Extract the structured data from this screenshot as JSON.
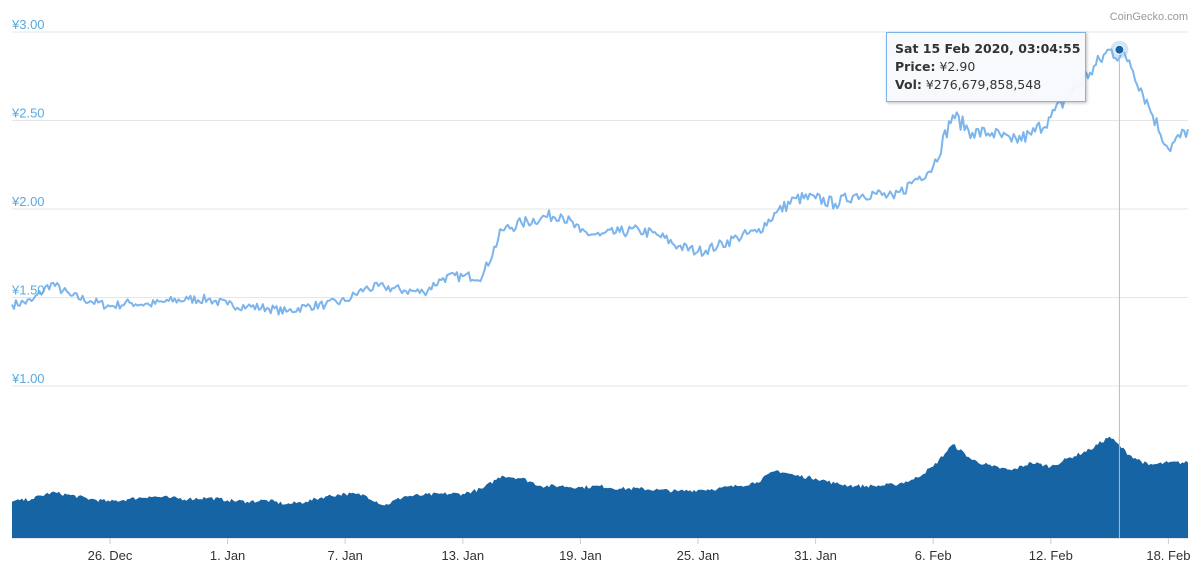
{
  "branding": {
    "credit": "CoinGecko.com"
  },
  "tooltip": {
    "date": "Sat 15 Feb 2020, 03:04:55",
    "price_label": "Price:",
    "price_value": "¥2.90",
    "vol_label": "Vol:",
    "vol_value": "¥276,679,858,548"
  },
  "colors": {
    "price_line": "#7cb5ec",
    "volume_fill": "#1764a4",
    "grid": "#e6e6e6",
    "ytick": "#5aa9e0"
  },
  "chart_data": {
    "type": "line",
    "x_axis": {
      "type": "date",
      "range": [
        "2019-12-21",
        "2020-02-19"
      ],
      "tick_labels": [
        "26. Dec",
        "1. Jan",
        "7. Jan",
        "13. Jan",
        "19. Jan",
        "25. Jan",
        "31. Jan",
        "6. Feb",
        "12. Feb",
        "18. Feb"
      ]
    },
    "y_axis": {
      "unit": "¥",
      "range": [
        1.0,
        3.0
      ],
      "tick_labels": [
        "¥1.00",
        "¥1.50",
        "¥2.00",
        "¥2.50",
        "¥3.00"
      ],
      "ticks": [
        1.0,
        1.5,
        2.0,
        2.5,
        3.0
      ],
      "grid": true
    },
    "series": [
      {
        "kind": "price",
        "x": [
          "2019-12-21",
          "2019-12-22",
          "2019-12-23",
          "2019-12-24",
          "2019-12-25",
          "2019-12-26",
          "2019-12-27",
          "2019-12-28",
          "2019-12-29",
          "2019-12-30",
          "2019-12-31",
          "2020-01-01",
          "2020-01-02",
          "2020-01-03",
          "2020-01-04",
          "2020-01-05",
          "2020-01-06",
          "2020-01-07",
          "2020-01-08",
          "2020-01-09",
          "2020-01-10",
          "2020-01-11",
          "2020-01-12",
          "2020-01-13",
          "2020-01-14",
          "2020-01-15",
          "2020-01-16",
          "2020-01-17",
          "2020-01-18",
          "2020-01-19",
          "2020-01-20",
          "2020-01-21",
          "2020-01-22",
          "2020-01-23",
          "2020-01-24",
          "2020-01-25",
          "2020-01-26",
          "2020-01-27",
          "2020-01-28",
          "2020-01-29",
          "2020-01-30",
          "2020-01-31",
          "2020-02-01",
          "2020-02-02",
          "2020-02-03",
          "2020-02-04",
          "2020-02-05",
          "2020-02-06",
          "2020-02-07",
          "2020-02-08",
          "2020-02-09",
          "2020-02-10",
          "2020-02-11",
          "2020-02-12",
          "2020-02-13",
          "2020-02-14",
          "2020-02-15",
          "2020-02-16",
          "2020-02-17",
          "2020-02-18",
          "2020-02-19"
        ],
        "y": [
          1.46,
          1.48,
          1.58,
          1.51,
          1.48,
          1.45,
          1.47,
          1.46,
          1.48,
          1.49,
          1.49,
          1.46,
          1.45,
          1.44,
          1.42,
          1.45,
          1.46,
          1.48,
          1.55,
          1.56,
          1.54,
          1.53,
          1.61,
          1.62,
          1.62,
          1.88,
          1.92,
          1.95,
          1.97,
          1.87,
          1.85,
          1.87,
          1.88,
          1.85,
          1.79,
          1.76,
          1.79,
          1.84,
          1.87,
          1.98,
          2.06,
          2.06,
          2.03,
          2.08,
          2.09,
          2.06,
          2.16,
          2.24,
          2.53,
          2.43,
          2.43,
          2.38,
          2.42,
          2.52,
          2.65,
          2.77,
          2.9,
          2.84,
          2.58,
          2.34,
          2.45
        ]
      },
      {
        "kind": "volume",
        "x": [
          "2019-12-21",
          "2019-12-22",
          "2019-12-23",
          "2019-12-24",
          "2019-12-25",
          "2019-12-26",
          "2019-12-27",
          "2019-12-28",
          "2019-12-29",
          "2019-12-30",
          "2019-12-31",
          "2020-01-01",
          "2020-01-02",
          "2020-01-03",
          "2020-01-04",
          "2020-01-05",
          "2020-01-06",
          "2020-01-07",
          "2020-01-08",
          "2020-01-09",
          "2020-01-10",
          "2020-01-11",
          "2020-01-12",
          "2020-01-13",
          "2020-01-14",
          "2020-01-15",
          "2020-01-16",
          "2020-01-17",
          "2020-01-18",
          "2020-01-19",
          "2020-01-20",
          "2020-01-21",
          "2020-01-22",
          "2020-01-23",
          "2020-01-24",
          "2020-01-25",
          "2020-01-26",
          "2020-01-27",
          "2020-01-28",
          "2020-01-29",
          "2020-01-30",
          "2020-01-31",
          "2020-02-01",
          "2020-02-02",
          "2020-02-03",
          "2020-02-04",
          "2020-02-05",
          "2020-02-06",
          "2020-02-07",
          "2020-02-08",
          "2020-02-09",
          "2020-02-10",
          "2020-02-11",
          "2020-02-12",
          "2020-02-13",
          "2020-02-14",
          "2020-02-15",
          "2020-02-16",
          "2020-02-17",
          "2020-02-18",
          "2020-02-19"
        ],
        "relative": [
          0.28,
          0.3,
          0.35,
          0.33,
          0.3,
          0.28,
          0.3,
          0.32,
          0.31,
          0.3,
          0.31,
          0.29,
          0.28,
          0.29,
          0.26,
          0.28,
          0.32,
          0.34,
          0.33,
          0.25,
          0.32,
          0.33,
          0.34,
          0.34,
          0.38,
          0.48,
          0.46,
          0.4,
          0.4,
          0.39,
          0.4,
          0.38,
          0.38,
          0.37,
          0.36,
          0.37,
          0.38,
          0.4,
          0.43,
          0.52,
          0.48,
          0.46,
          0.42,
          0.4,
          0.4,
          0.41,
          0.45,
          0.55,
          0.72,
          0.6,
          0.55,
          0.52,
          0.58,
          0.55,
          0.62,
          0.68,
          0.78,
          0.64,
          0.56,
          0.58,
          0.58
        ]
      }
    ],
    "hover": {
      "x": "2020-02-15",
      "y": 2.9
    }
  }
}
